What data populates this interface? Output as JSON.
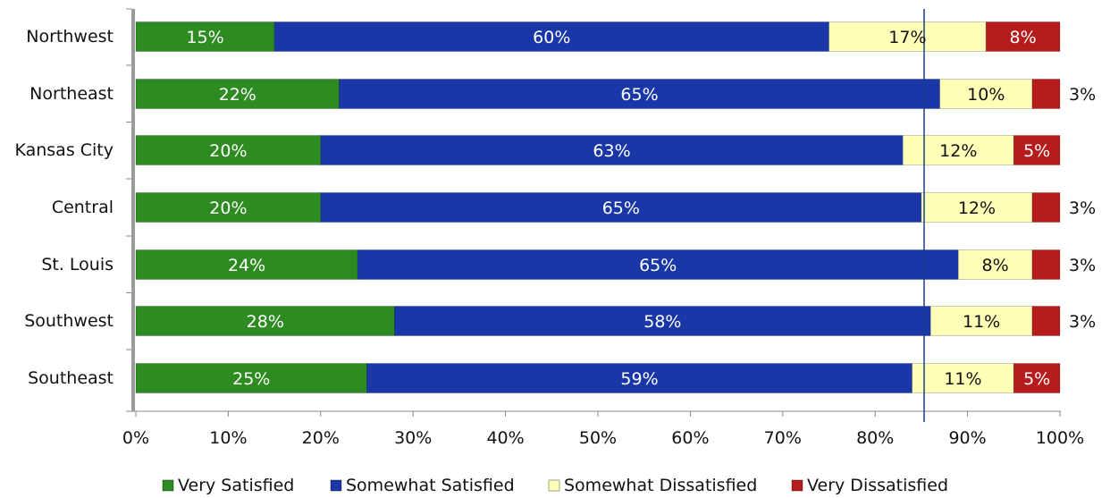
{
  "chart_data": {
    "type": "bar",
    "orientation": "horizontal",
    "stacked": true,
    "categories": [
      "Northwest",
      "Northeast",
      "Kansas City",
      "Central",
      "St. Louis",
      "Southwest",
      "Southeast"
    ],
    "series": [
      {
        "name": "Very Satisfied",
        "color": "#2e8b21",
        "label_color": "#ffffff",
        "values": [
          15,
          22,
          20,
          20,
          24,
          28,
          25
        ],
        "labels": [
          "15%",
          "22%",
          "20%",
          "20%",
          "24%",
          "28%",
          "25%"
        ]
      },
      {
        "name": "Somewhat Satisfied",
        "color": "#1a37a8",
        "label_color": "#ffffff",
        "values": [
          60,
          65,
          63,
          65,
          65,
          58,
          59
        ],
        "labels": [
          "60%",
          "65%",
          "63%",
          "65%",
          "65%",
          "58%",
          "59%"
        ]
      },
      {
        "name": "Somewhat Dissatisfied",
        "color": "#ffffb8",
        "label_color": "#111111",
        "values": [
          17,
          10,
          12,
          12,
          8,
          11,
          11
        ],
        "labels": [
          "17%",
          "10%",
          "12%",
          "12%",
          "8%",
          "11%",
          "11%"
        ]
      },
      {
        "name": "Very Dissatisfied",
        "color": "#b71c1c",
        "label_color": "#ffffff",
        "values": [
          8,
          3,
          5,
          3,
          3,
          3,
          5
        ],
        "labels": [
          "8%",
          "3%",
          "5%",
          "3%",
          "3%",
          "3%",
          "5%"
        ],
        "label_outside": [
          false,
          true,
          false,
          true,
          true,
          true,
          false
        ]
      }
    ],
    "xlim": [
      0,
      100
    ],
    "x_ticks": [
      "0%",
      "10%",
      "20%",
      "30%",
      "40%",
      "50%",
      "60%",
      "70%",
      "80%",
      "90%",
      "100%"
    ],
    "reference_line": {
      "x": 85.3,
      "color": "#1a3d8f"
    },
    "legend_position": "bottom",
    "grid": false,
    "title": "",
    "xlabel": "",
    "ylabel": ""
  }
}
